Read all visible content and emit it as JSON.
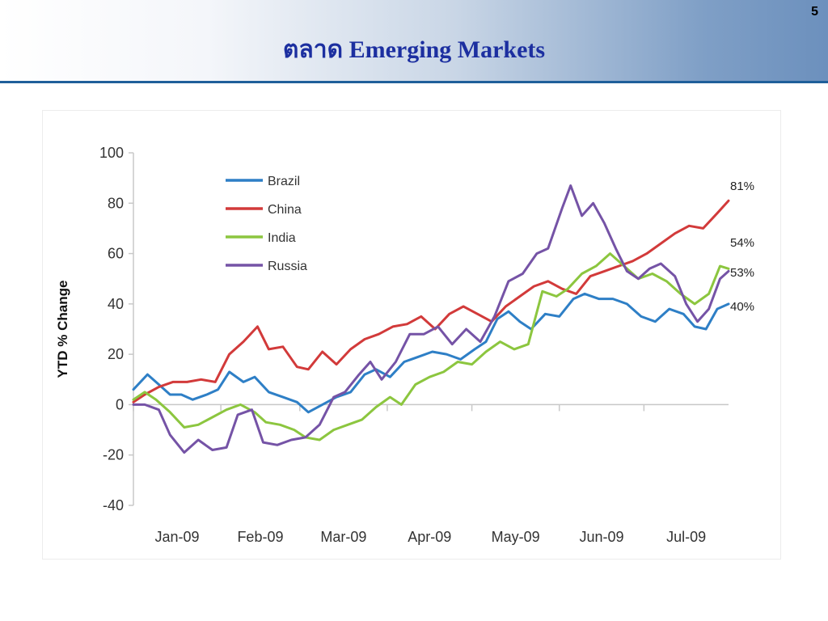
{
  "slide": {
    "title": "ตลาด Emerging Markets",
    "page_number": "5"
  },
  "chart_data": {
    "type": "line",
    "title": "",
    "xlabel": "",
    "ylabel": "YTD % Change",
    "ylim": [
      -40,
      100
    ],
    "yticks": [
      -40,
      -20,
      0,
      20,
      40,
      60,
      80,
      100
    ],
    "x_range": [
      "2009-01-01",
      "2009-07-31"
    ],
    "xtick_labels": [
      {
        "date": "2009-01-01",
        "label": "Jan-09"
      },
      {
        "date": "2009-02-01",
        "label": "Feb-09"
      },
      {
        "date": "2009-03-01",
        "label": "Mar-09"
      },
      {
        "date": "2009-04-01",
        "label": "Apr-09"
      },
      {
        "date": "2009-05-01",
        "label": "May-09"
      },
      {
        "date": "2009-06-01",
        "label": "Jun-09"
      },
      {
        "date": "2009-07-01",
        "label": "Jul-09"
      }
    ],
    "grid": false,
    "legend_position": "top-left",
    "series": [
      {
        "name": "Brazil",
        "color": "#2e7fc6",
        "end_label": "40%",
        "points": [
          [
            "2009-01-01",
            6
          ],
          [
            "2009-01-06",
            12
          ],
          [
            "2009-01-10",
            8
          ],
          [
            "2009-01-14",
            4
          ],
          [
            "2009-01-18",
            4
          ],
          [
            "2009-01-22",
            2
          ],
          [
            "2009-01-27",
            4
          ],
          [
            "2009-01-31",
            6
          ],
          [
            "2009-02-04",
            13
          ],
          [
            "2009-02-09",
            9
          ],
          [
            "2009-02-13",
            11
          ],
          [
            "2009-02-18",
            5
          ],
          [
            "2009-02-23",
            3
          ],
          [
            "2009-02-28",
            1
          ],
          [
            "2009-03-04",
            -3
          ],
          [
            "2009-03-09",
            0
          ],
          [
            "2009-03-14",
            3
          ],
          [
            "2009-03-19",
            5
          ],
          [
            "2009-03-24",
            12
          ],
          [
            "2009-03-28",
            14
          ],
          [
            "2009-04-02",
            11
          ],
          [
            "2009-04-07",
            17
          ],
          [
            "2009-04-12",
            19
          ],
          [
            "2009-04-17",
            21
          ],
          [
            "2009-04-22",
            20
          ],
          [
            "2009-04-27",
            18
          ],
          [
            "2009-05-02",
            22
          ],
          [
            "2009-05-06",
            25
          ],
          [
            "2009-05-10",
            34
          ],
          [
            "2009-05-14",
            37
          ],
          [
            "2009-05-18",
            33
          ],
          [
            "2009-05-22",
            30
          ],
          [
            "2009-05-27",
            36
          ],
          [
            "2009-06-01",
            35
          ],
          [
            "2009-06-06",
            42
          ],
          [
            "2009-06-10",
            44
          ],
          [
            "2009-06-15",
            42
          ],
          [
            "2009-06-20",
            42
          ],
          [
            "2009-06-25",
            40
          ],
          [
            "2009-06-30",
            35
          ],
          [
            "2009-07-05",
            33
          ],
          [
            "2009-07-10",
            38
          ],
          [
            "2009-07-15",
            36
          ],
          [
            "2009-07-19",
            31
          ],
          [
            "2009-07-23",
            30
          ],
          [
            "2009-07-27",
            38
          ],
          [
            "2009-07-31",
            40
          ]
        ]
      },
      {
        "name": "China",
        "color": "#d23a3a",
        "end_label": "81%",
        "points": [
          [
            "2009-01-01",
            1
          ],
          [
            "2009-01-05",
            4
          ],
          [
            "2009-01-10",
            7
          ],
          [
            "2009-01-15",
            9
          ],
          [
            "2009-01-20",
            9
          ],
          [
            "2009-01-25",
            10
          ],
          [
            "2009-01-30",
            9
          ],
          [
            "2009-02-04",
            20
          ],
          [
            "2009-02-09",
            25
          ],
          [
            "2009-02-14",
            31
          ],
          [
            "2009-02-18",
            22
          ],
          [
            "2009-02-23",
            23
          ],
          [
            "2009-02-28",
            15
          ],
          [
            "2009-03-04",
            14
          ],
          [
            "2009-03-09",
            21
          ],
          [
            "2009-03-14",
            16
          ],
          [
            "2009-03-19",
            22
          ],
          [
            "2009-03-24",
            26
          ],
          [
            "2009-03-29",
            28
          ],
          [
            "2009-04-03",
            31
          ],
          [
            "2009-04-08",
            32
          ],
          [
            "2009-04-13",
            35
          ],
          [
            "2009-04-18",
            30
          ],
          [
            "2009-04-23",
            36
          ],
          [
            "2009-04-28",
            39
          ],
          [
            "2009-05-03",
            36
          ],
          [
            "2009-05-08",
            33
          ],
          [
            "2009-05-13",
            39
          ],
          [
            "2009-05-18",
            43
          ],
          [
            "2009-05-23",
            47
          ],
          [
            "2009-05-28",
            49
          ],
          [
            "2009-06-02",
            46
          ],
          [
            "2009-06-07",
            44
          ],
          [
            "2009-06-12",
            51
          ],
          [
            "2009-06-17",
            53
          ],
          [
            "2009-06-22",
            55
          ],
          [
            "2009-06-27",
            57
          ],
          [
            "2009-07-02",
            60
          ],
          [
            "2009-07-07",
            64
          ],
          [
            "2009-07-12",
            68
          ],
          [
            "2009-07-17",
            71
          ],
          [
            "2009-07-22",
            70
          ],
          [
            "2009-07-27",
            76
          ],
          [
            "2009-07-31",
            81
          ]
        ]
      },
      {
        "name": "India",
        "color": "#8cc63f",
        "end_label": "54%",
        "points": [
          [
            "2009-01-01",
            2
          ],
          [
            "2009-01-05",
            5
          ],
          [
            "2009-01-09",
            2
          ],
          [
            "2009-01-14",
            -3
          ],
          [
            "2009-01-19",
            -9
          ],
          [
            "2009-01-24",
            -8
          ],
          [
            "2009-01-29",
            -5
          ],
          [
            "2009-02-03",
            -2
          ],
          [
            "2009-02-08",
            0
          ],
          [
            "2009-02-13",
            -3
          ],
          [
            "2009-02-17",
            -7
          ],
          [
            "2009-02-22",
            -8
          ],
          [
            "2009-02-27",
            -10
          ],
          [
            "2009-03-03",
            -13
          ],
          [
            "2009-03-08",
            -14
          ],
          [
            "2009-03-13",
            -10
          ],
          [
            "2009-03-18",
            -8
          ],
          [
            "2009-03-23",
            -6
          ],
          [
            "2009-03-28",
            -1
          ],
          [
            "2009-04-02",
            3
          ],
          [
            "2009-04-06",
            0
          ],
          [
            "2009-04-11",
            8
          ],
          [
            "2009-04-16",
            11
          ],
          [
            "2009-04-21",
            13
          ],
          [
            "2009-04-26",
            17
          ],
          [
            "2009-05-01",
            16
          ],
          [
            "2009-05-06",
            21
          ],
          [
            "2009-05-11",
            25
          ],
          [
            "2009-05-16",
            22
          ],
          [
            "2009-05-21",
            24
          ],
          [
            "2009-05-26",
            45
          ],
          [
            "2009-05-31",
            43
          ],
          [
            "2009-06-04",
            46
          ],
          [
            "2009-06-09",
            52
          ],
          [
            "2009-06-14",
            55
          ],
          [
            "2009-06-19",
            60
          ],
          [
            "2009-06-24",
            55
          ],
          [
            "2009-06-29",
            50
          ],
          [
            "2009-07-04",
            52
          ],
          [
            "2009-07-09",
            49
          ],
          [
            "2009-07-14",
            44
          ],
          [
            "2009-07-19",
            40
          ],
          [
            "2009-07-24",
            44
          ],
          [
            "2009-07-28",
            55
          ],
          [
            "2009-07-31",
            54
          ]
        ]
      },
      {
        "name": "Russia",
        "color": "#7553a6",
        "end_label": "53%",
        "points": [
          [
            "2009-01-01",
            0
          ],
          [
            "2009-01-05",
            0
          ],
          [
            "2009-01-10",
            -2
          ],
          [
            "2009-01-14",
            -12
          ],
          [
            "2009-01-19",
            -19
          ],
          [
            "2009-01-24",
            -14
          ],
          [
            "2009-01-29",
            -18
          ],
          [
            "2009-02-03",
            -17
          ],
          [
            "2009-02-07",
            -4
          ],
          [
            "2009-02-12",
            -2
          ],
          [
            "2009-02-16",
            -15
          ],
          [
            "2009-02-21",
            -16
          ],
          [
            "2009-02-26",
            -14
          ],
          [
            "2009-03-03",
            -13
          ],
          [
            "2009-03-08",
            -8
          ],
          [
            "2009-03-13",
            3
          ],
          [
            "2009-03-17",
            5
          ],
          [
            "2009-03-22",
            12
          ],
          [
            "2009-03-26",
            17
          ],
          [
            "2009-03-30",
            10
          ],
          [
            "2009-04-04",
            17
          ],
          [
            "2009-04-09",
            28
          ],
          [
            "2009-04-14",
            28
          ],
          [
            "2009-04-19",
            31
          ],
          [
            "2009-04-24",
            24
          ],
          [
            "2009-04-29",
            30
          ],
          [
            "2009-05-04",
            25
          ],
          [
            "2009-05-09",
            35
          ],
          [
            "2009-05-14",
            49
          ],
          [
            "2009-05-19",
            52
          ],
          [
            "2009-05-24",
            60
          ],
          [
            "2009-05-28",
            62
          ],
          [
            "2009-06-02",
            78
          ],
          [
            "2009-06-05",
            87
          ],
          [
            "2009-06-09",
            75
          ],
          [
            "2009-06-13",
            80
          ],
          [
            "2009-06-17",
            72
          ],
          [
            "2009-06-21",
            62
          ],
          [
            "2009-06-25",
            53
          ],
          [
            "2009-06-29",
            50
          ],
          [
            "2009-07-03",
            54
          ],
          [
            "2009-07-07",
            56
          ],
          [
            "2009-07-12",
            51
          ],
          [
            "2009-07-16",
            40
          ],
          [
            "2009-07-20",
            33
          ],
          [
            "2009-07-24",
            38
          ],
          [
            "2009-07-28",
            50
          ],
          [
            "2009-07-31",
            53
          ]
        ]
      }
    ]
  }
}
